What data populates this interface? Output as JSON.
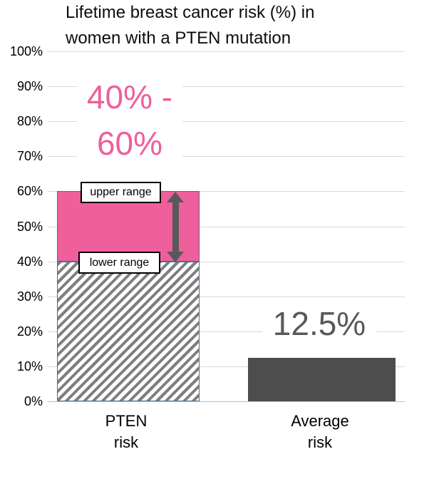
{
  "title": {
    "line1": "Lifetime breast cancer risk (%) in",
    "line2": "women with a PTEN mutation"
  },
  "y_axis": {
    "tick_labels": [
      "100%",
      "90%",
      "80%",
      "70%",
      "60%",
      "50%",
      "40%",
      "30%",
      "20%",
      "10%",
      "0%"
    ]
  },
  "x_axis": {
    "categories": [
      {
        "line1": "PTEN",
        "line2": "risk"
      },
      {
        "line1": "Average",
        "line2": "risk"
      }
    ]
  },
  "annotations": {
    "range": {
      "line1": "40% -",
      "line2": "60%"
    },
    "average_value": "12.5%",
    "upper_range": "upper range",
    "lower_range": "lower range"
  },
  "colors": {
    "pink": "#EE5F9B",
    "bar_dark_gray": "#4D4D4D",
    "annotation_gray": "#595959",
    "gridline": "#D9D9D9",
    "axis_line": "#BFBFBF",
    "hatch_gray": "#7F7F7F",
    "bar_border_blue": "#41719C",
    "title_black": "#0D0D0D"
  },
  "chart_data": {
    "type": "bar",
    "title": "Lifetime breast cancer risk (%) in women with a PTEN mutation",
    "categories": [
      "PTEN risk",
      "Average risk"
    ],
    "ylim": [
      0,
      100
    ],
    "ytick_step": 10,
    "grid": true,
    "legend": false,
    "bars": [
      {
        "category": "PTEN risk",
        "lower_range": 40,
        "upper_range": 60,
        "value_label": "40% - 60%",
        "segments": [
          {
            "name": "lower range",
            "from": 0,
            "to": 40,
            "fill": "hatched"
          },
          {
            "name": "upper range",
            "from": 40,
            "to": 60,
            "fill": "pink"
          }
        ]
      },
      {
        "category": "Average risk",
        "value": 12.5,
        "value_label": "12.5%",
        "segments": [
          {
            "name": "average risk",
            "from": 0,
            "to": 12.5,
            "fill": "dark-gray"
          }
        ]
      }
    ]
  }
}
